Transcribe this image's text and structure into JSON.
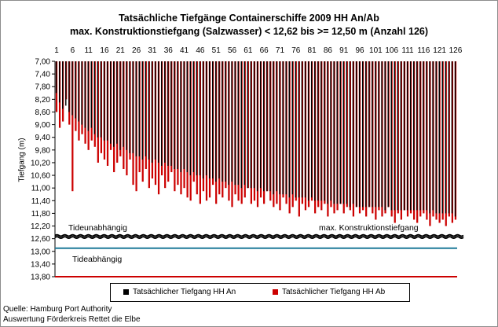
{
  "chart_data": {
    "type": "bar",
    "title": "Tatsächliche Tiefgänge Containerschiffe  2009 HH An/Ab",
    "subtitle": "max. Konstruktionstiefgang  (Salzwasser)  < 12,62 bis >= 12,50 m (Anzahl 126)",
    "ylabel": "Tiefgang (m)",
    "xlabel": "",
    "ylim": [
      7.0,
      13.8
    ],
    "y_inverted": true,
    "y_ticks": [
      "7,00",
      "7,40",
      "7,80",
      "8,20",
      "8,60",
      "9,00",
      "9,40",
      "9,80",
      "10,20",
      "10,60",
      "11,00",
      "11,40",
      "11,80",
      "12,20",
      "12,60",
      "13,00",
      "13,40",
      "13,80"
    ],
    "x_ticks": [
      "1",
      "6",
      "11",
      "16",
      "21",
      "26",
      "31",
      "36",
      "41",
      "46",
      "51",
      "56",
      "61",
      "66",
      "71",
      "76",
      "81",
      "86",
      "91",
      "96",
      "101",
      "106",
      "111",
      "116",
      "121",
      "126"
    ],
    "series": [
      {
        "name": "Tatsächlicher Tiefgang HH An",
        "color": "#000000",
        "values": [
          8.0,
          8.3,
          8.5,
          8.4,
          8.6,
          8.7,
          8.8,
          8.9,
          9.0,
          9.1,
          9.2,
          9.1,
          9.3,
          9.4,
          9.4,
          9.5,
          9.5,
          9.6,
          9.7,
          9.6,
          9.8,
          9.7,
          9.8,
          9.9,
          9.9,
          10.0,
          10.0,
          10.1,
          10.0,
          10.1,
          10.2,
          10.1,
          10.2,
          10.3,
          10.2,
          10.3,
          10.3,
          10.4,
          10.4,
          10.5,
          10.4,
          10.5,
          10.6,
          10.5,
          10.6,
          10.6,
          10.7,
          10.6,
          10.7,
          10.7,
          10.8,
          10.7,
          10.8,
          10.8,
          10.9,
          10.8,
          10.9,
          10.9,
          11.0,
          10.9,
          11.0,
          11.0,
          11.0,
          11.1,
          11.0,
          11.1,
          11.1,
          11.1,
          11.2,
          11.1,
          11.2,
          11.2,
          11.2,
          11.3,
          11.2,
          11.3,
          11.3,
          11.3,
          11.3,
          11.4,
          11.3,
          11.4,
          11.4,
          11.4,
          11.4,
          11.5,
          11.4,
          11.5,
          11.5,
          11.5,
          11.5,
          11.5,
          11.6,
          11.5,
          11.6,
          11.6,
          11.6,
          11.6,
          11.6,
          11.6,
          11.6,
          11.6,
          11.6,
          11.7,
          11.6,
          11.7,
          11.7,
          11.7,
          11.7,
          11.7,
          11.7,
          11.7,
          11.7,
          11.7,
          11.7,
          11.7,
          11.7,
          11.8,
          11.7,
          11.8,
          11.8,
          11.8,
          11.8,
          11.8,
          11.8,
          11.9
        ]
      },
      {
        "name": "Tatsächlicher Tiefgang HH Ab",
        "color": "#cc0000",
        "values": [
          8.6,
          9.1,
          8.9,
          8.2,
          9.0,
          11.1,
          9.2,
          9.5,
          9.3,
          9.6,
          9.8,
          9.5,
          9.7,
          10.2,
          9.9,
          10.1,
          10.3,
          9.8,
          10.5,
          10.2,
          10.0,
          10.4,
          10.6,
          10.1,
          10.9,
          11.1,
          10.5,
          10.8,
          10.4,
          11.0,
          10.7,
          10.9,
          11.2,
          10.6,
          11.0,
          10.8,
          10.5,
          11.1,
          10.9,
          11.2,
          11.0,
          11.3,
          11.4,
          10.8,
          11.2,
          11.5,
          11.1,
          11.4,
          11.3,
          10.9,
          11.5,
          11.2,
          11.3,
          11.0,
          11.4,
          11.6,
          11.2,
          11.4,
          11.5,
          11.3,
          11.0,
          11.5,
          11.4,
          11.6,
          11.3,
          11.5,
          11.1,
          11.4,
          11.6,
          11.5,
          11.7,
          11.3,
          11.5,
          11.8,
          11.6,
          11.4,
          11.9,
          11.5,
          11.7,
          11.6,
          11.4,
          11.8,
          11.6,
          11.7,
          11.5,
          11.9,
          11.6,
          11.8,
          11.7,
          11.5,
          11.8,
          11.6,
          11.7,
          11.9,
          11.6,
          11.8,
          11.7,
          11.9,
          11.6,
          11.8,
          12.0,
          11.7,
          11.9,
          11.8,
          11.6,
          11.9,
          12.1,
          11.8,
          12.0,
          11.7,
          11.9,
          11.8,
          12.0,
          12.1,
          11.9,
          11.8,
          12.0,
          12.2,
          11.9,
          12.0,
          12.1,
          12.0,
          12.2,
          11.9,
          12.1,
          12.0
        ]
      }
    ],
    "reference_lines": [
      {
        "label": "Tideunabhängig",
        "value": 12.5,
        "color": "#000000",
        "style": "wavy"
      },
      {
        "label": "max. Konstruktionstiefgang",
        "value": 12.56,
        "color": "#000000",
        "style": "wavy"
      },
      {
        "label": "",
        "value": 12.9,
        "color": "#1f7a99",
        "style": "solid"
      },
      {
        "label": "Tideabhängig",
        "value": 13.8,
        "color": "#cc0000",
        "style": "solid"
      }
    ],
    "legend_position": "bottom",
    "grid": false
  },
  "source_lines": [
    "Quelle: Hamburg Port Authority",
    "Auswertung Förderkreis Rettet die Elbe"
  ]
}
